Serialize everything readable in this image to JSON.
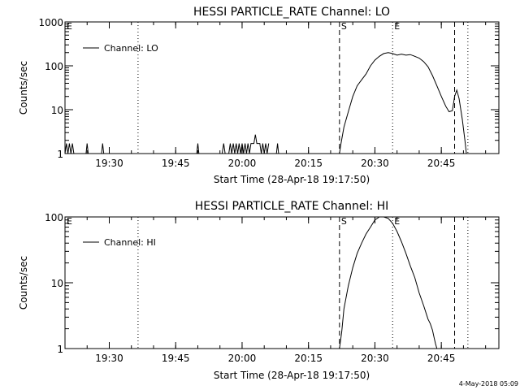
{
  "chart_data": [
    {
      "type": "line",
      "title": "HESSI PARTICLE_RATE Channel: LO",
      "xlabel": "Start Time (28-Apr-18 19:17:50)",
      "ylabel": "Counts/sec",
      "yscale": "log",
      "xlim": [
        "19:20:00",
        "20:58:00"
      ],
      "ylim": [
        1,
        1000
      ],
      "xticks": [
        "19:30",
        "19:45",
        "20:00",
        "20:15",
        "20:30",
        "20:45"
      ],
      "yticks": [
        "1",
        "10",
        "100",
        "1000"
      ],
      "legend": {
        "label": "Channel: LO",
        "position": "top-left"
      },
      "markers": [
        {
          "label": "E",
          "time": "19:20:00",
          "style": "none"
        },
        {
          "label": "",
          "time": "19:36:30",
          "style": "dotted"
        },
        {
          "label": "S",
          "time": "20:22:00",
          "style": "dashed"
        },
        {
          "label": "E",
          "time": "20:34:00",
          "style": "dotted"
        },
        {
          "label": "",
          "time": "20:48:00",
          "style": "dashed"
        },
        {
          "label": "",
          "time": "20:51:00",
          "style": "dotted"
        }
      ],
      "series": [
        {
          "name": "Channel: LO",
          "segments": [
            [
              [
                "19:20:00",
                1
              ],
              [
                "19:20:20",
                1.7
              ],
              [
                "19:20:40",
                1
              ],
              [
                "19:21:00",
                1.7
              ],
              [
                "19:21:20",
                1
              ],
              [
                "19:21:40",
                1.7
              ],
              [
                "19:22:00",
                1
              ]
            ],
            [
              [
                "19:24:45",
                1
              ],
              [
                "19:25:00",
                1.7
              ],
              [
                "19:25:15",
                1
              ]
            ],
            [
              [
                "19:28:15",
                1
              ],
              [
                "19:28:30",
                1.7
              ],
              [
                "19:28:45",
                1
              ]
            ],
            [
              [
                "19:49:45",
                1
              ],
              [
                "19:50:00",
                1.7
              ],
              [
                "19:50:15",
                1
              ]
            ],
            [
              [
                "19:55:30",
                1
              ],
              [
                "19:55:50",
                1.7
              ],
              [
                "19:56:10",
                1
              ]
            ],
            [
              [
                "19:57:00",
                1
              ],
              [
                "19:57:20",
                1.7
              ],
              [
                "19:57:40",
                1
              ],
              [
                "19:58:00",
                1.7
              ],
              [
                "19:58:20",
                1
              ],
              [
                "19:58:40",
                1.7
              ],
              [
                "19:59:00",
                1
              ],
              [
                "19:59:20",
                1.7
              ],
              [
                "19:59:40",
                1
              ],
              [
                "20:00:00",
                1.7
              ],
              [
                "20:00:20",
                1
              ],
              [
                "20:00:40",
                1.7
              ],
              [
                "20:01:00",
                1
              ],
              [
                "20:01:20",
                1.7
              ],
              [
                "20:01:40",
                1
              ],
              [
                "20:02:00",
                1.7
              ],
              [
                "20:02:20",
                1.7
              ],
              [
                "20:02:40",
                1.7
              ],
              [
                "20:03:00",
                2.7
              ],
              [
                "20:03:20",
                1.7
              ],
              [
                "20:04:00",
                1.7
              ],
              [
                "20:04:20",
                1
              ],
              [
                "20:04:40",
                1.7
              ],
              [
                "20:05:00",
                1
              ],
              [
                "20:05:20",
                1.7
              ],
              [
                "20:05:40",
                1
              ],
              [
                "20:06:00",
                1.7
              ]
            ],
            [
              [
                "20:07:45",
                1
              ],
              [
                "20:08:00",
                1.7
              ],
              [
                "20:08:15",
                1
              ]
            ],
            [
              [
                "20:22:00",
                1
              ],
              [
                "20:22:20",
                1.7
              ],
              [
                "20:23:00",
                4
              ],
              [
                "20:24:00",
                9
              ],
              [
                "20:25:00",
                20
              ],
              [
                "20:26:00",
                35
              ],
              [
                "20:27:00",
                48
              ],
              [
                "20:28:00",
                65
              ],
              [
                "20:29:00",
                100
              ],
              [
                "20:30:00",
                135
              ],
              [
                "20:31:00",
                165
              ],
              [
                "20:32:00",
                190
              ],
              [
                "20:33:00",
                200
              ],
              [
                "20:34:00",
                190
              ],
              [
                "20:35:00",
                175
              ],
              [
                "20:36:00",
                185
              ],
              [
                "20:37:00",
                175
              ],
              [
                "20:38:00",
                180
              ],
              [
                "20:39:00",
                165
              ],
              [
                "20:40:00",
                150
              ],
              [
                "20:41:00",
                125
              ],
              [
                "20:42:00",
                95
              ],
              [
                "20:43:00",
                60
              ],
              [
                "20:44:00",
                35
              ],
              [
                "20:45:00",
                20
              ],
              [
                "20:46:00",
                12
              ],
              [
                "20:46:45",
                9
              ],
              [
                "20:47:30",
                9.5
              ],
              [
                "20:48:00",
                20
              ],
              [
                "20:48:30",
                28
              ],
              [
                "20:49:00",
                18
              ],
              [
                "20:49:45",
                6
              ],
              [
                "20:50:20",
                2
              ],
              [
                "20:50:40",
                1
              ]
            ]
          ]
        }
      ]
    },
    {
      "type": "line",
      "title": "HESSI PARTICLE_RATE Channel: HI",
      "xlabel": "Start Time (28-Apr-18 19:17:50)",
      "ylabel": "Counts/sec",
      "yscale": "log",
      "xlim": [
        "19:20:00",
        "20:58:00"
      ],
      "ylim": [
        1,
        100
      ],
      "xticks": [
        "19:30",
        "19:45",
        "20:00",
        "20:15",
        "20:30",
        "20:45"
      ],
      "yticks": [
        "1",
        "10",
        "100"
      ],
      "legend": {
        "label": "Channel: HI",
        "position": "top-left"
      },
      "markers": [
        {
          "label": "E",
          "time": "19:20:00",
          "style": "none"
        },
        {
          "label": "",
          "time": "19:36:30",
          "style": "dotted"
        },
        {
          "label": "S",
          "time": "20:22:00",
          "style": "dashed"
        },
        {
          "label": "E",
          "time": "20:34:00",
          "style": "dotted"
        },
        {
          "label": "",
          "time": "20:48:00",
          "style": "dashed"
        },
        {
          "label": "",
          "time": "20:51:00",
          "style": "dotted"
        }
      ],
      "series": [
        {
          "name": "Channel: HI",
          "segments": [
            [
              [
                "20:22:00",
                1
              ],
              [
                "20:22:30",
                1.8
              ],
              [
                "20:23:00",
                4
              ],
              [
                "20:24:00",
                9
              ],
              [
                "20:25:00",
                17
              ],
              [
                "20:26:00",
                28
              ],
              [
                "20:27:00",
                40
              ],
              [
                "20:28:00",
                55
              ],
              [
                "20:29:00",
                70
              ],
              [
                "20:30:00",
                90
              ],
              [
                "20:31:00",
                100
              ],
              [
                "20:32:00",
                100
              ],
              [
                "20:33:00",
                95
              ],
              [
                "20:34:00",
                80
              ],
              [
                "20:35:00",
                60
              ],
              [
                "20:36:00",
                42
              ],
              [
                "20:37:00",
                28
              ],
              [
                "20:38:00",
                18
              ],
              [
                "20:39:00",
                12
              ],
              [
                "20:40:00",
                7
              ],
              [
                "20:41:00",
                4.5
              ],
              [
                "20:42:00",
                2.8
              ],
              [
                "20:42:30",
                2.4
              ],
              [
                "20:43:00",
                1.9
              ],
              [
                "20:43:20",
                1.5
              ],
              [
                "20:43:40",
                1.2
              ],
              [
                "20:44:00",
                1
              ]
            ]
          ]
        }
      ]
    }
  ],
  "footer": {
    "timestamp": "4-May-2018 05:09"
  }
}
